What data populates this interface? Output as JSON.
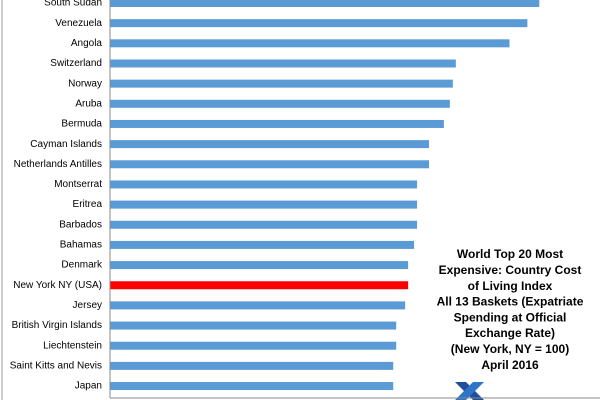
{
  "chart_data": {
    "type": "bar",
    "orientation": "horizontal",
    "title": [
      "World Top 20 Most",
      "Expensive: Country Cost",
      "of Living Index",
      "All 13 Baskets (Expatriate",
      "Spending at Official",
      "Exchange Rate)",
      "(New York, NY = 100)",
      "April 2016"
    ],
    "categories": [
      "South Sudan",
      "Venezuela",
      "Angola",
      "Switzerland",
      "Norway",
      "Aruba",
      "Bermuda",
      "Cayman Islands",
      "Netherlands Antilles",
      "Montserrat",
      "Eritrea",
      "Barbados",
      "Bahamas",
      "Denmark",
      "New York NY (USA)",
      "Jersey",
      "British Virgin Islands",
      "Liechtenstein",
      "Saint Kitts and Nevis",
      "Japan"
    ],
    "values": [
      144,
      140,
      134,
      116,
      115,
      114,
      112,
      107,
      107,
      103,
      103,
      103,
      102,
      100,
      100,
      99,
      96,
      96,
      95,
      95
    ],
    "colors": [
      "#5b9bd5",
      "#5b9bd5",
      "#5b9bd5",
      "#5b9bd5",
      "#5b9bd5",
      "#5b9bd5",
      "#5b9bd5",
      "#5b9bd5",
      "#5b9bd5",
      "#5b9bd5",
      "#5b9bd5",
      "#5b9bd5",
      "#5b9bd5",
      "#5b9bd5",
      "#ff0000",
      "#5b9bd5",
      "#5b9bd5",
      "#5b9bd5",
      "#5b9bd5",
      "#5b9bd5"
    ],
    "xlim": [
      0,
      160
    ]
  }
}
